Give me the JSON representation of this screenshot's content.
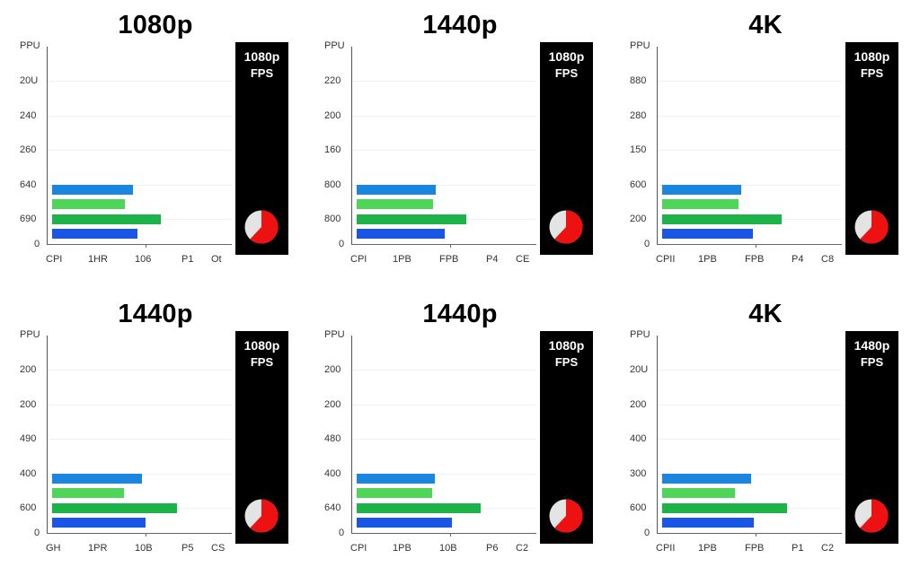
{
  "colors": {
    "bar_blue": "#1a86e0",
    "bar_light_green": "#4fd65a",
    "bar_green": "#1db348",
    "bar_dark_blue": "#1a56e6",
    "pie_red": "#ee1111",
    "pie_gray": "#e4e4e4",
    "fps_panel_bg": "#000000"
  },
  "panels": [
    {
      "title": "1080p",
      "y_ticks": [
        "PPU",
        "20U",
        "240",
        "260",
        "640",
        "690",
        "0"
      ],
      "x_ticks": [
        "CPI",
        "1HR",
        "106",
        "P1",
        "Ot"
      ],
      "fps_box": {
        "resolution": "1080p",
        "label": "FPS"
      },
      "bar_lengths": [
        90,
        81,
        121,
        95
      ],
      "pie_red_pct": 62
    },
    {
      "title": "1440p",
      "y_ticks": [
        "PPU",
        "220",
        "200",
        "160",
        "800",
        "800",
        "0"
      ],
      "x_ticks": [
        "CPI",
        "1PB",
        "FPB",
        "P4",
        "CE"
      ],
      "fps_box": {
        "resolution": "1080p",
        "label": "FPS"
      },
      "bar_lengths": [
        88,
        85,
        122,
        98
      ],
      "pie_red_pct": 62
    },
    {
      "title": "4K",
      "y_ticks": [
        "PPU",
        "880",
        "280",
        "150",
        "600",
        "200",
        "0"
      ],
      "x_ticks": [
        "CPII",
        "1PB",
        "FPB",
        "P4",
        "C8"
      ],
      "fps_box": {
        "resolution": "1080p",
        "label": "FPS"
      },
      "bar_lengths": [
        88,
        85,
        133,
        101
      ],
      "pie_red_pct": 62
    },
    {
      "title": "1440p",
      "y_ticks": [
        "PPU",
        "200",
        "200",
        "490",
        "400",
        "600",
        "0"
      ],
      "x_ticks": [
        "GH",
        "1PR",
        "10B",
        "P5",
        "CS"
      ],
      "fps_box": {
        "resolution": "1080p",
        "label": "FPS"
      },
      "bar_lengths": [
        100,
        80,
        139,
        104
      ],
      "pie_red_pct": 62
    },
    {
      "title": "1440p",
      "y_ticks": [
        "PPU",
        "200",
        "200",
        "480",
        "400",
        "640",
        "0"
      ],
      "x_ticks": [
        "CPI",
        "1PB",
        "10B",
        "P6",
        "C2"
      ],
      "fps_box": {
        "resolution": "1080p",
        "label": "FPS"
      },
      "bar_lengths": [
        87,
        84,
        138,
        106
      ],
      "pie_red_pct": 62
    },
    {
      "title": "4K",
      "y_ticks": [
        "PPU",
        "20U",
        "200",
        "400",
        "300",
        "600",
        "0"
      ],
      "x_ticks": [
        "CPII",
        "1PB",
        "FPB",
        "P1",
        "C2"
      ],
      "fps_box": {
        "resolution": "1480p",
        "label": "FPS"
      },
      "bar_lengths": [
        99,
        81,
        139,
        102
      ],
      "pie_red_pct": 62
    }
  ],
  "chart_data": [
    {
      "type": "bar",
      "orientation": "horizontal",
      "title": "1080p",
      "y_tick_labels": [
        "PPU",
        "20U",
        "240",
        "260",
        "640",
        "690",
        "0"
      ],
      "x_tick_labels": [
        "CPI",
        "1HR",
        "106",
        "P1",
        "Ot"
      ],
      "series": [
        {
          "name": "blue",
          "value": 90
        },
        {
          "name": "light-green",
          "value": 81
        },
        {
          "name": "green",
          "value": 121
        },
        {
          "name": "dark-blue",
          "value": 95
        }
      ],
      "value_units": "px length of 200px plot width",
      "side_panel": {
        "text": "1080p FPS",
        "pie": [
          {
            "label": "red",
            "value": 62
          },
          {
            "label": "gray",
            "value": 38
          }
        ]
      },
      "grid": true,
      "legend": "none"
    },
    {
      "type": "bar",
      "orientation": "horizontal",
      "title": "1440p",
      "y_tick_labels": [
        "PPU",
        "220",
        "200",
        "160",
        "800",
        "800",
        "0"
      ],
      "x_tick_labels": [
        "CPI",
        "1PB",
        "FPB",
        "P4",
        "CE"
      ],
      "series": [
        {
          "name": "blue",
          "value": 88
        },
        {
          "name": "light-green",
          "value": 85
        },
        {
          "name": "green",
          "value": 122
        },
        {
          "name": "dark-blue",
          "value": 98
        }
      ],
      "value_units": "px length of 200px plot width",
      "side_panel": {
        "text": "1080p FPS",
        "pie": [
          {
            "label": "red",
            "value": 62
          },
          {
            "label": "gray",
            "value": 38
          }
        ]
      },
      "grid": true,
      "legend": "none"
    },
    {
      "type": "bar",
      "orientation": "horizontal",
      "title": "4K",
      "y_tick_labels": [
        "PPU",
        "880",
        "280",
        "150",
        "600",
        "200",
        "0"
      ],
      "x_tick_labels": [
        "CPII",
        "1PB",
        "FPB",
        "P4",
        "C8"
      ],
      "series": [
        {
          "name": "blue",
          "value": 88
        },
        {
          "name": "light-green",
          "value": 85
        },
        {
          "name": "green",
          "value": 133
        },
        {
          "name": "dark-blue",
          "value": 101
        }
      ],
      "value_units": "px length of 200px plot width",
      "side_panel": {
        "text": "1080p FPS",
        "pie": [
          {
            "label": "red",
            "value": 62
          },
          {
            "label": "gray",
            "value": 38
          }
        ]
      },
      "grid": true,
      "legend": "none"
    },
    {
      "type": "bar",
      "orientation": "horizontal",
      "title": "1440p",
      "y_tick_labels": [
        "PPU",
        "200",
        "200",
        "490",
        "400",
        "600",
        "0"
      ],
      "x_tick_labels": [
        "GH",
        "1PR",
        "10B",
        "P5",
        "CS"
      ],
      "series": [
        {
          "name": "blue",
          "value": 100
        },
        {
          "name": "light-green",
          "value": 80
        },
        {
          "name": "green",
          "value": 139
        },
        {
          "name": "dark-blue",
          "value": 104
        }
      ],
      "value_units": "px length of 200px plot width",
      "side_panel": {
        "text": "1080p FPS",
        "pie": [
          {
            "label": "red",
            "value": 62
          },
          {
            "label": "gray",
            "value": 38
          }
        ]
      },
      "grid": true,
      "legend": "none"
    },
    {
      "type": "bar",
      "orientation": "horizontal",
      "title": "1440p",
      "y_tick_labels": [
        "PPU",
        "200",
        "200",
        "480",
        "400",
        "640",
        "0"
      ],
      "x_tick_labels": [
        "CPI",
        "1PB",
        "10B",
        "P6",
        "C2"
      ],
      "series": [
        {
          "name": "blue",
          "value": 87
        },
        {
          "name": "light-green",
          "value": 84
        },
        {
          "name": "green",
          "value": 138
        },
        {
          "name": "dark-blue",
          "value": 106
        }
      ],
      "value_units": "px length of 200px plot width",
      "side_panel": {
        "text": "1080p FPS",
        "pie": [
          {
            "label": "red",
            "value": 62
          },
          {
            "label": "gray",
            "value": 38
          }
        ]
      },
      "grid": true,
      "legend": "none"
    },
    {
      "type": "bar",
      "orientation": "horizontal",
      "title": "4K",
      "y_tick_labels": [
        "PPU",
        "20U",
        "200",
        "400",
        "300",
        "600",
        "0"
      ],
      "x_tick_labels": [
        "CPII",
        "1PB",
        "FPB",
        "P1",
        "C2"
      ],
      "series": [
        {
          "name": "blue",
          "value": 99
        },
        {
          "name": "light-green",
          "value": 81
        },
        {
          "name": "green",
          "value": 139
        },
        {
          "name": "dark-blue",
          "value": 102
        }
      ],
      "value_units": "px length of 200px plot width",
      "side_panel": {
        "text": "1480p FPS",
        "pie": [
          {
            "label": "red",
            "value": 62
          },
          {
            "label": "gray",
            "value": 38
          }
        ]
      },
      "grid": true,
      "legend": "none"
    }
  ]
}
